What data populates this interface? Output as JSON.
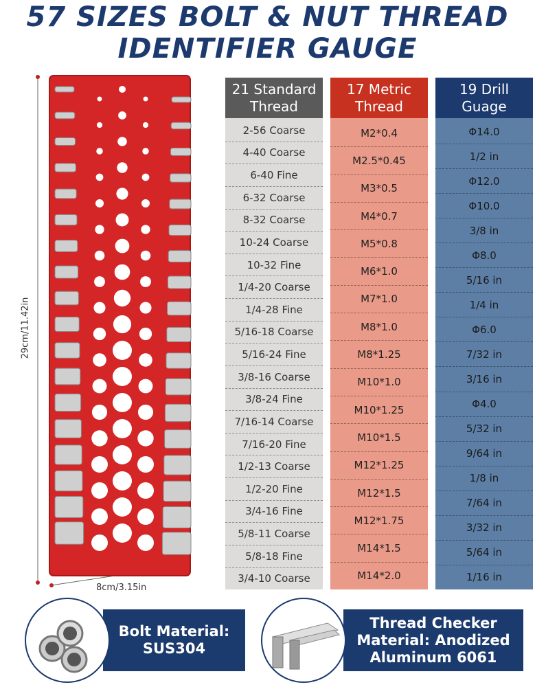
{
  "header": {
    "title_lines": [
      "57 SIZES BOLT & NUT THREAD",
      "IDENTIFIER GAUGE"
    ]
  },
  "dimensions": {
    "height": "29cm/11.42in",
    "width": "8cm/3.15in"
  },
  "columns": [
    {
      "title": "21 Standard Thread",
      "items": [
        "2-56 Coarse",
        "4-40 Coarse",
        "6-40 Fine",
        "6-32 Coarse",
        "8-32 Coarse",
        "10-24 Coarse",
        "10-32 Fine",
        "1/4-20 Coarse",
        "1/4-28 Fine",
        "5/16-18 Coarse",
        "5/16-24 Fine",
        "3/8-16 Coarse",
        "3/8-24 Fine",
        "7/16-14 Coarse",
        "7/16-20 Fine",
        "1/2-13 Coarse",
        "1/2-20 Fine",
        "3/4-16 Fine",
        "5/8-11 Coarse",
        "5/8-18 Fine",
        "3/4-10 Coarse"
      ]
    },
    {
      "title": "17 Metric Thread",
      "items": [
        "M2*0.4",
        "M2.5*0.45",
        "M3*0.5",
        "M4*0.7",
        "M5*0.8",
        "M6*1.0",
        "M7*1.0",
        "M8*1.0",
        "M8*1.25",
        "M10*1.0",
        "M10*1.25",
        "M10*1.5",
        "M12*1.25",
        "M12*1.5",
        "M12*1.75",
        "M14*1.5",
        "M14*2.0"
      ]
    },
    {
      "title": "19 Drill Guage",
      "items": [
        "Φ14.0",
        "1/2 in",
        "Φ12.0",
        "Φ10.0",
        "3/8 in",
        "Φ8.0",
        "5/16 in",
        "1/4 in",
        "Φ6.0",
        "7/32 in",
        "3/16 in",
        "Φ4.0",
        "5/32 in",
        "9/64 in",
        "1/8 in",
        "7/64 in",
        "3/32 in",
        "5/64 in",
        "1/16 in"
      ]
    }
  ],
  "badges": [
    {
      "text": "Bolt Material: SUS304"
    },
    {
      "text": "Thread Checker Material: Anodized Aluminum 6061"
    }
  ]
}
